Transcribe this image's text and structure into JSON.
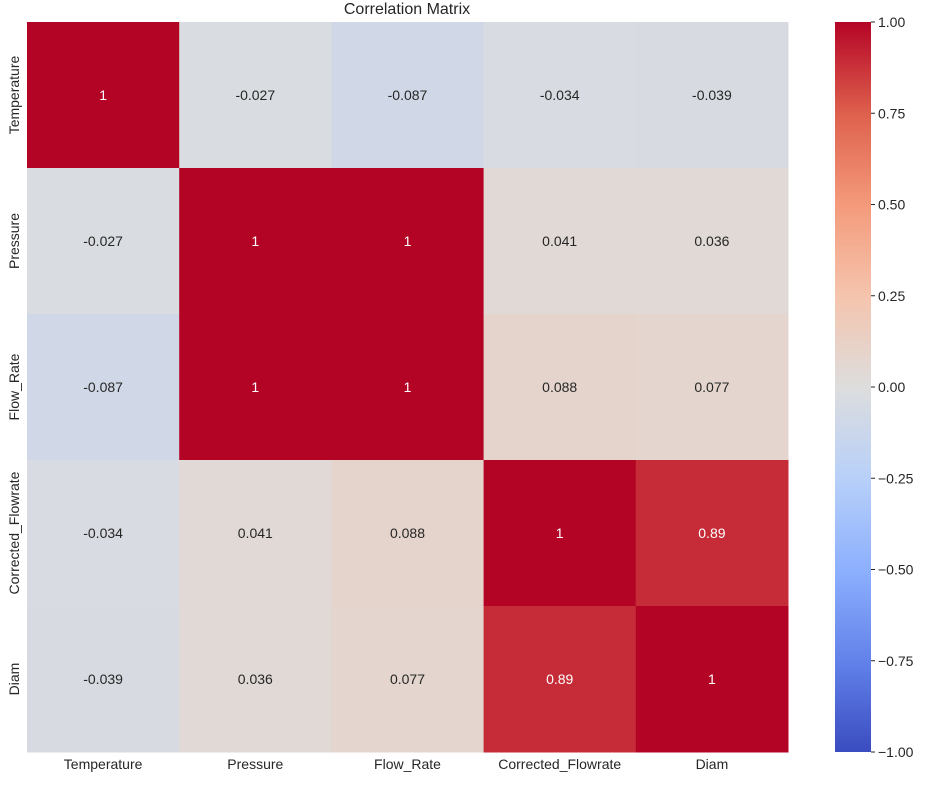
{
  "chart_data": {
    "type": "heatmap",
    "title": "Correlation Matrix",
    "xlabel": "",
    "ylabel": "",
    "x_labels": [
      "Temperature",
      "Pressure",
      "Flow_Rate",
      "Corrected_Flowrate",
      "Diam"
    ],
    "y_labels": [
      "Temperature",
      "Pressure",
      "Flow_Rate",
      "Corrected_Flowrate",
      "Diam"
    ],
    "values": [
      [
        1,
        -0.027,
        -0.087,
        -0.034,
        -0.039
      ],
      [
        -0.027,
        1,
        1,
        0.041,
        0.036
      ],
      [
        -0.087,
        1,
        1,
        0.088,
        0.077
      ],
      [
        -0.034,
        0.041,
        0.088,
        1,
        0.89
      ],
      [
        -0.039,
        0.036,
        0.077,
        0.89,
        1
      ]
    ],
    "cell_labels": [
      [
        "1",
        "-0.027",
        "-0.087",
        "-0.034",
        "-0.039"
      ],
      [
        "-0.027",
        "1",
        "1",
        "0.041",
        "0.036"
      ],
      [
        "-0.087",
        "1",
        "1",
        "0.088",
        "0.077"
      ],
      [
        "-0.034",
        "0.041",
        "0.088",
        "1",
        "0.89"
      ],
      [
        "-0.039",
        "0.036",
        "0.077",
        "0.89",
        "1"
      ]
    ],
    "colorbar": {
      "colormap": "coolwarm",
      "vmin": -1.0,
      "vmax": 1.0,
      "ticks": [
        1.0,
        0.75,
        0.5,
        0.25,
        0.0,
        -0.25,
        -0.5,
        -0.75,
        -1.0
      ],
      "tick_labels": [
        "1.00",
        "0.75",
        "0.50",
        "0.25",
        "0.00",
        "−0.25",
        "−0.50",
        "−0.75",
        "−1.00"
      ]
    },
    "grid": false,
    "legend": "colorbar-right"
  }
}
